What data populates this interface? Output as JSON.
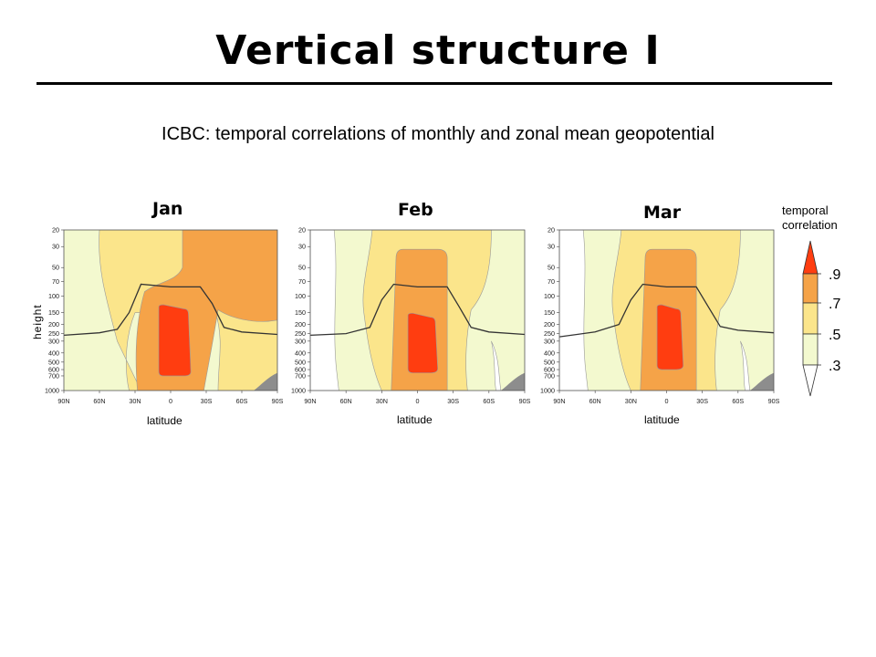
{
  "slide": {
    "title": "Vertical structure I",
    "subtitle": "ICBC: temporal correlations of monthly and zonal mean geopotential"
  },
  "colors": {
    "lt_0_3": "#ffffff",
    "c_0_3_0_5": "#f3f9cf",
    "c_0_5_0_7": "#fbe58b",
    "c_0_7_0_9": "#f5a348",
    "gt_0_9": "#ff3d10",
    "topography": "#8d8d8d",
    "tropopause_line": "#333333",
    "contour_line": "#9a9a9a"
  },
  "chart_data": [
    {
      "type": "heatmap",
      "title": "Jan",
      "xlabel": "latitude",
      "ylabel": "height",
      "x_ticks": [
        "90N",
        "60N",
        "30N",
        "0",
        "30S",
        "60S",
        "90S"
      ],
      "y_ticks": [
        "20",
        "30",
        "50",
        "70",
        "100",
        "150",
        "200",
        "250",
        "300",
        "400",
        "500",
        "600",
        "700",
        "1000"
      ],
      "xlim": [
        90,
        -90
      ],
      "ylim_pressure": [
        1000,
        20
      ],
      "levels": [
        0.3,
        0.5,
        0.7,
        0.9
      ],
      "regions": [
        {
          "level": 0.7,
          "description": "broad maximum from 30N to 30S throughout column, extending to top at 20 southward of equator"
        },
        {
          "level": 0.9,
          "lat_range": [
            10,
            -15
          ],
          "pressure_range": [
            130,
            700
          ]
        }
      ],
      "tropopause": [
        [
          90,
          260
        ],
        [
          60,
          245
        ],
        [
          45,
          225
        ],
        [
          35,
          150
        ],
        [
          25,
          75
        ],
        [
          0,
          80
        ],
        [
          -25,
          80
        ],
        [
          -35,
          120
        ],
        [
          -45,
          215
        ],
        [
          -60,
          240
        ],
        [
          -90,
          255
        ]
      ]
    },
    {
      "type": "heatmap",
      "title": "Feb",
      "xlabel": "latitude",
      "x_ticks": [
        "90N",
        "60N",
        "30N",
        "0",
        "30S",
        "60S",
        "90S"
      ],
      "y_ticks": [
        "20",
        "30",
        "50",
        "70",
        "100",
        "150",
        "200",
        "250",
        "300",
        "400",
        "500",
        "600",
        "700",
        "1000"
      ],
      "xlim": [
        90,
        -90
      ],
      "ylim_pressure": [
        1000,
        20
      ],
      "levels": [
        0.3,
        0.5,
        0.7,
        0.9
      ],
      "regions": [
        {
          "level": 0.7,
          "lat_range": [
            20,
            -25
          ],
          "pressure_range": [
            40,
            1000
          ]
        },
        {
          "level": 0.9,
          "lat_range": [
            8,
            -15
          ],
          "pressure_range": [
            160,
            650
          ]
        }
      ],
      "tropopause": [
        [
          90,
          260
        ],
        [
          60,
          250
        ],
        [
          40,
          215
        ],
        [
          30,
          110
        ],
        [
          20,
          75
        ],
        [
          0,
          80
        ],
        [
          -25,
          80
        ],
        [
          -35,
          130
        ],
        [
          -45,
          215
        ],
        [
          -60,
          240
        ],
        [
          -90,
          255
        ]
      ]
    },
    {
      "type": "heatmap",
      "title": "Mar",
      "xlabel": "latitude",
      "x_ticks": [
        "90N",
        "60N",
        "30N",
        "0",
        "30S",
        "60S",
        "90S"
      ],
      "y_ticks": [
        "20",
        "30",
        "50",
        "70",
        "100",
        "150",
        "200",
        "250",
        "300",
        "400",
        "500",
        "600",
        "700",
        "1000"
      ],
      "xlim": [
        90,
        -90
      ],
      "ylim_pressure": [
        1000,
        20
      ],
      "levels": [
        0.3,
        0.5,
        0.7,
        0.9
      ],
      "regions": [
        {
          "level": 0.7,
          "lat_range": [
            20,
            -25
          ],
          "pressure_range": [
            40,
            1000
          ]
        },
        {
          "level": 0.9,
          "lat_range": [
            8,
            -12
          ],
          "pressure_range": [
            130,
            600
          ]
        }
      ],
      "tropopause": [
        [
          90,
          270
        ],
        [
          60,
          240
        ],
        [
          40,
          200
        ],
        [
          30,
          110
        ],
        [
          20,
          75
        ],
        [
          0,
          80
        ],
        [
          -25,
          80
        ],
        [
          -35,
          130
        ],
        [
          -45,
          210
        ],
        [
          -60,
          230
        ],
        [
          -90,
          245
        ]
      ]
    }
  ],
  "legend": {
    "title_line1": "temporal",
    "title_line2": "correlation",
    "labels": [
      ".9",
      ".7",
      ".5",
      ".3"
    ]
  }
}
